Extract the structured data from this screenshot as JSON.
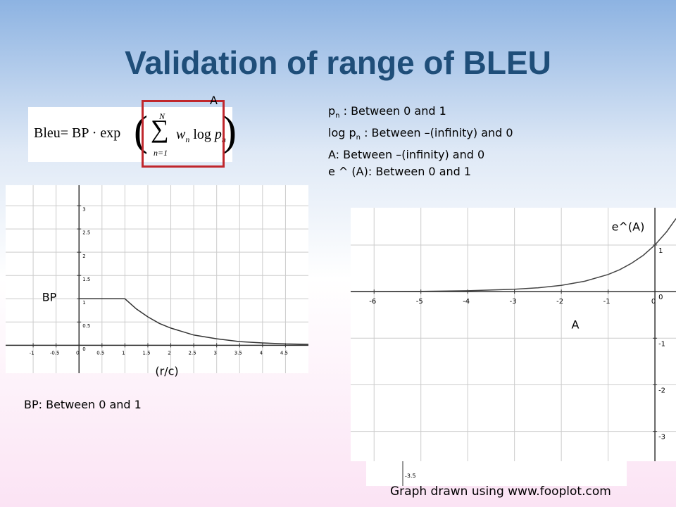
{
  "title": "Validation of range of BLEU",
  "formula": {
    "label": "A",
    "lhs": "Bleu= BP · exp",
    "sum": "∑",
    "upper": "N",
    "lower": "n=1",
    "w": "w",
    "w_sub": "n",
    "log": "log",
    "p": "p",
    "p_sub": "n"
  },
  "notes": [
    {
      "pre": "p",
      "sub": "n",
      "post": " : Between 0 and 1"
    },
    {
      "pre": "log p",
      "sub": "n",
      "post": " : Between –(infinity) and 0"
    },
    {
      "pre": "A: Between –(infinity) and 0",
      "sub": "",
      "post": ""
    },
    {
      "pre": "e ^ (A): Between 0 and 1",
      "sub": "",
      "post": ""
    }
  ],
  "bp_note": "BP: Between 0 and 1",
  "footer": "Graph drawn using www.fooplot.com",
  "chart_data": [
    {
      "type": "line",
      "ylabel": "BP",
      "xlabel": "(r/c)",
      "x": [
        0,
        1,
        1.25,
        1.5,
        1.75,
        2,
        2.5,
        3,
        3.5,
        4,
        4.5,
        5
      ],
      "series": [
        {
          "name": "BP",
          "color": "#333333",
          "values": [
            1,
            1,
            0.78,
            0.61,
            0.47,
            0.37,
            0.22,
            0.14,
            0.08,
            0.05,
            0.03,
            0.02
          ]
        }
      ],
      "xlim": [
        -1.6,
        5
      ],
      "ylim": [
        -0.6,
        3.44
      ],
      "xticks": [
        -1,
        -0.5,
        0,
        0.5,
        1,
        1.5,
        2,
        2.5,
        3,
        3.5,
        4,
        4.5
      ],
      "yticks": [
        0,
        0.5,
        1,
        1.5,
        2,
        2.5,
        3
      ],
      "grid": true
    },
    {
      "type": "line",
      "ylabel": "e^(A)",
      "xlabel": "A",
      "annotation": "-3.5",
      "x": [
        -6.5,
        -6,
        -5,
        -4,
        -3,
        -2.5,
        -2,
        -1.5,
        -1,
        -0.75,
        -0.5,
        -0.25,
        0,
        0.25,
        0.45
      ],
      "series": [
        {
          "name": "e^(A)",
          "color": "#444444",
          "values": [
            0.0015,
            0.0025,
            0.0067,
            0.018,
            0.05,
            0.082,
            0.135,
            0.223,
            0.368,
            0.472,
            0.607,
            0.779,
            1,
            1.284,
            1.568
          ]
        }
      ],
      "xlim": [
        -6.5,
        0.45
      ],
      "ylim": [
        -3.64,
        1.8
      ],
      "xticks": [
        -6,
        -5,
        -4,
        -3,
        -2,
        -1,
        0
      ],
      "yticks": [
        -3,
        -2,
        -1,
        0,
        1
      ],
      "grid": true
    }
  ]
}
